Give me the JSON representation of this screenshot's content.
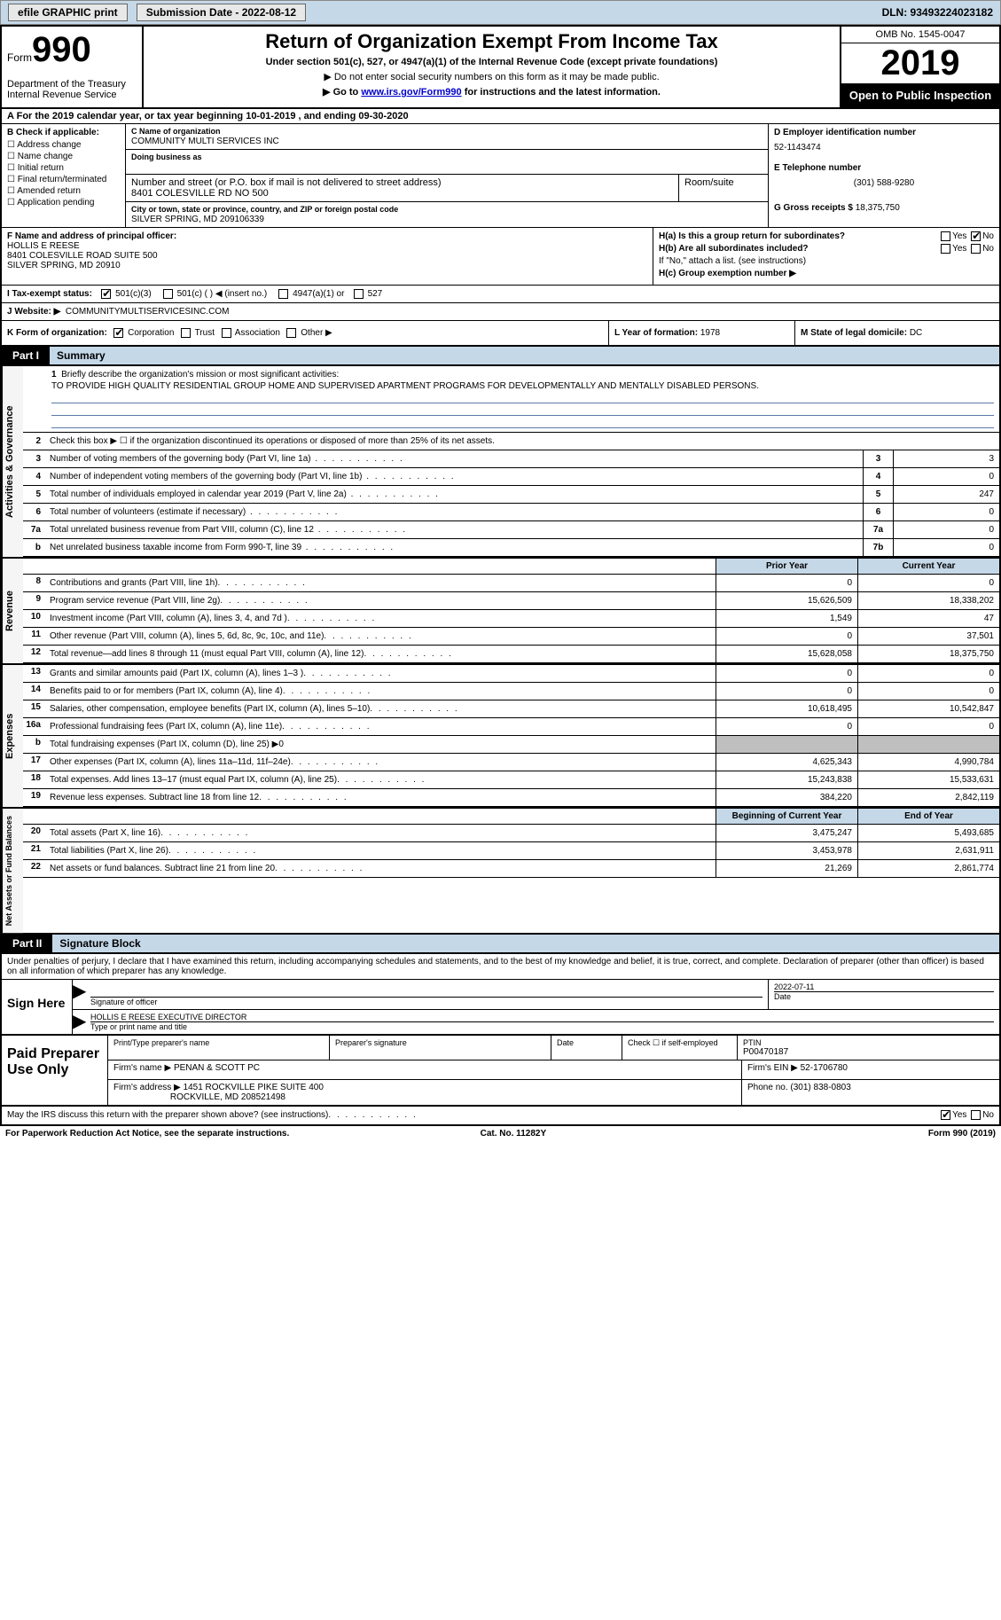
{
  "topbar": {
    "efile": "efile GRAPHIC print",
    "submission": "Submission Date - 2022-08-12",
    "dln": "DLN: 93493224023182"
  },
  "header": {
    "form_word": "Form",
    "form_num": "990",
    "dept": "Department of the Treasury\nInternal Revenue Service",
    "title": "Return of Organization Exempt From Income Tax",
    "sub1": "Under section 501(c), 527, or 4947(a)(1) of the Internal Revenue Code (except private foundations)",
    "sub2": "▶ Do not enter social security numbers on this form as it may be made public.",
    "sub3_pre": "▶ Go to ",
    "sub3_link": "www.irs.gov/Form990",
    "sub3_post": " for instructions and the latest information.",
    "omb": "OMB No. 1545-0047",
    "year": "2019",
    "otp": "Open to Public Inspection"
  },
  "lineA": "For the 2019 calendar year, or tax year beginning 10-01-2019    , and ending 09-30-2020",
  "boxB": {
    "label": "B Check if applicable:",
    "opts": [
      "Address change",
      "Name change",
      "Initial return",
      "Final return/terminated",
      "Amended return",
      "Application pending"
    ]
  },
  "boxC": {
    "name_lbl": "C Name of organization",
    "name": "COMMUNITY MULTI SERVICES INC",
    "dba_lbl": "Doing business as",
    "dba": "",
    "addr_lbl": "Number and street (or P.O. box if mail is not delivered to street address)",
    "addr": "8401 COLESVILLE RD NO 500",
    "room_lbl": "Room/suite",
    "city_lbl": "City or town, state or province, country, and ZIP or foreign postal code",
    "city": "SILVER SPRING, MD   209106339"
  },
  "boxD": {
    "ein_lbl": "D Employer identification number",
    "ein": "52-1143474",
    "tel_lbl": "E Telephone number",
    "tel": "(301) 588-9280",
    "gross_lbl": "G Gross receipts $",
    "gross": "18,375,750"
  },
  "boxF": {
    "lbl": "F  Name and address of principal officer:",
    "name": "HOLLIS E REESE",
    "addr1": "8401 COLESVILLE ROAD SUITE 500",
    "addr2": "SILVER SPRING, MD  20910"
  },
  "boxH": {
    "ha": "H(a)  Is this a group return for subordinates?",
    "hb": "H(b)  Are all subordinates included?",
    "hb2": "If \"No,\" attach a list. (see instructions)",
    "hc": "H(c)  Group exemption number ▶"
  },
  "lineI": {
    "lbl": "I    Tax-exempt status:",
    "o1": "501(c)(3)",
    "o2": "501(c) (   ) ◀ (insert no.)",
    "o3": "4947(a)(1) or",
    "o4": "527"
  },
  "lineJ": {
    "lbl": "J   Website: ▶",
    "val": "COMMUNITYMULTISERVICESINC.COM"
  },
  "lineK": {
    "lbl": "K Form of organization:",
    "o1": "Corporation",
    "o2": "Trust",
    "o3": "Association",
    "o4": "Other ▶"
  },
  "lineL": {
    "lbl": "L Year of formation:",
    "val": "1978"
  },
  "lineM": {
    "lbl": "M State of legal domicile:",
    "val": "DC"
  },
  "part1": {
    "num": "Part I",
    "title": "Summary"
  },
  "mission": {
    "lbl": "1  Briefly describe the organization's mission or most significant activities:",
    "text": "TO PROVIDE HIGH QUALITY RESIDENTIAL GROUP HOME AND SUPERVISED APARTMENT PROGRAMS FOR DEVELOPMENTALLY AND MENTALLY DISABLED PERSONS."
  },
  "gov_rows": [
    {
      "n": "2",
      "t": "Check this box ▶ ☐  if the organization discontinued its operations or disposed of more than 25% of its net assets."
    },
    {
      "n": "3",
      "t": "Number of voting members of the governing body (Part VI, line 1a)",
      "box": "3",
      "v": "3"
    },
    {
      "n": "4",
      "t": "Number of independent voting members of the governing body (Part VI, line 1b)",
      "box": "4",
      "v": "0"
    },
    {
      "n": "5",
      "t": "Total number of individuals employed in calendar year 2019 (Part V, line 2a)",
      "box": "5",
      "v": "247"
    },
    {
      "n": "6",
      "t": "Total number of volunteers (estimate if necessary)",
      "box": "6",
      "v": "0"
    },
    {
      "n": "7a",
      "t": "Total unrelated business revenue from Part VIII, column (C), line 12",
      "box": "7a",
      "v": "0"
    },
    {
      "n": "b",
      "t": "Net unrelated business taxable income from Form 990-T, line 39",
      "box": "7b",
      "v": "0"
    }
  ],
  "fin_hdr": {
    "c1": "Prior Year",
    "c2": "Current Year"
  },
  "revenue_rows": [
    {
      "n": "8",
      "t": "Contributions and grants (Part VIII, line 1h)",
      "c1": "0",
      "c2": "0"
    },
    {
      "n": "9",
      "t": "Program service revenue (Part VIII, line 2g)",
      "c1": "15,626,509",
      "c2": "18,338,202"
    },
    {
      "n": "10",
      "t": "Investment income (Part VIII, column (A), lines 3, 4, and 7d )",
      "c1": "1,549",
      "c2": "47"
    },
    {
      "n": "11",
      "t": "Other revenue (Part VIII, column (A), lines 5, 6d, 8c, 9c, 10c, and 11e)",
      "c1": "0",
      "c2": "37,501"
    },
    {
      "n": "12",
      "t": "Total revenue—add lines 8 through 11 (must equal Part VIII, column (A), line 12)",
      "c1": "15,628,058",
      "c2": "18,375,750"
    }
  ],
  "expense_rows": [
    {
      "n": "13",
      "t": "Grants and similar amounts paid (Part IX, column (A), lines 1–3 )",
      "c1": "0",
      "c2": "0"
    },
    {
      "n": "14",
      "t": "Benefits paid to or for members (Part IX, column (A), line 4)",
      "c1": "0",
      "c2": "0"
    },
    {
      "n": "15",
      "t": "Salaries, other compensation, employee benefits (Part IX, column (A), lines 5–10)",
      "c1": "10,618,495",
      "c2": "10,542,847"
    },
    {
      "n": "16a",
      "t": "Professional fundraising fees (Part IX, column (A), line 11e)",
      "c1": "0",
      "c2": "0"
    },
    {
      "n": "b",
      "t": "Total fundraising expenses (Part IX, column (D), line 25) ▶0",
      "gray": true
    },
    {
      "n": "17",
      "t": "Other expenses (Part IX, column (A), lines 11a–11d, 11f–24e)",
      "c1": "4,625,343",
      "c2": "4,990,784"
    },
    {
      "n": "18",
      "t": "Total expenses. Add lines 13–17 (must equal Part IX, column (A), line 25)",
      "c1": "15,243,838",
      "c2": "15,533,631"
    },
    {
      "n": "19",
      "t": "Revenue less expenses. Subtract line 18 from line 12",
      "c1": "384,220",
      "c2": "2,842,119"
    }
  ],
  "na_hdr": {
    "c1": "Beginning of Current Year",
    "c2": "End of Year"
  },
  "na_rows": [
    {
      "n": "20",
      "t": "Total assets (Part X, line 16)",
      "c1": "3,475,247",
      "c2": "5,493,685"
    },
    {
      "n": "21",
      "t": "Total liabilities (Part X, line 26)",
      "c1": "3,453,978",
      "c2": "2,631,911"
    },
    {
      "n": "22",
      "t": "Net assets or fund balances. Subtract line 21 from line 20",
      "c1": "21,269",
      "c2": "2,861,774"
    }
  ],
  "part2": {
    "num": "Part II",
    "title": "Signature Block"
  },
  "sig_text": "Under penalties of perjury, I declare that I have examined this return, including accompanying schedules and statements, and to the best of my knowledge and belief, it is true, correct, and complete. Declaration of preparer (other than officer) is based on all information of which preparer has any knowledge.",
  "sign": {
    "here": "Sign Here",
    "sig_lbl": "Signature of officer",
    "date_lbl": "Date",
    "date": "2022-07-11",
    "name": "HOLLIS E REESE  EXECUTIVE DIRECTOR",
    "name_lbl": "Type or print name and title"
  },
  "prep": {
    "title": "Paid Preparer Use Only",
    "h1": "Print/Type preparer's name",
    "h2": "Preparer's signature",
    "h3": "Date",
    "h4_lbl": "Check ☐ if self-employed",
    "h5_lbl": "PTIN",
    "ptin": "P00470187",
    "firm_lbl": "Firm's name    ▶",
    "firm": "PENAN & SCOTT PC",
    "ein_lbl": "Firm's EIN ▶",
    "ein": "52-1706780",
    "addr_lbl": "Firm's address ▶",
    "addr1": "1451 ROCKVILLE PIKE SUITE 400",
    "addr2": "ROCKVILLE, MD   208521498",
    "phone_lbl": "Phone no.",
    "phone": "(301) 838-0803"
  },
  "may_irs": "May the IRS discuss this return with the preparer shown above? (see instructions)",
  "footer": {
    "l": "For Paperwork Reduction Act Notice, see the separate instructions.",
    "c": "Cat. No. 11282Y",
    "r": "Form 990 (2019)"
  }
}
